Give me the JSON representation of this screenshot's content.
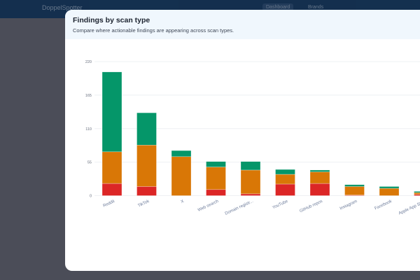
{
  "nav": {
    "brand": "DoppelSpotter",
    "dashboard": "Dashboard",
    "brands": "Brands"
  },
  "modal": {
    "title": "Findings by scan type",
    "subtitle": "Compare where actionable findings are appearing across scan types."
  },
  "chart_data": {
    "type": "bar",
    "stacked": true,
    "title": "",
    "xlabel": "",
    "ylabel": "",
    "ylim": [
      0,
      220
    ],
    "yticks": [
      0,
      55,
      110,
      165,
      220
    ],
    "grid": true,
    "categories": [
      "Reddit",
      "TikTok",
      "X",
      "Web search",
      "Domain registr...",
      "YouTube",
      "GitHub repos",
      "Instagram",
      "Facebook",
      "Apple App Sto..."
    ],
    "series": [
      {
        "color": "#dc2626",
        "values": [
          20,
          15,
          0,
          10,
          3,
          19,
          20,
          1,
          0,
          2
        ]
      },
      {
        "color": "#d97706",
        "values": [
          52,
          68,
          64,
          37,
          39,
          16,
          19,
          14,
          12,
          3
        ]
      },
      {
        "color": "#059669",
        "values": [
          131,
          53,
          10,
          9,
          14,
          8,
          3,
          3,
          3,
          2
        ]
      }
    ]
  }
}
